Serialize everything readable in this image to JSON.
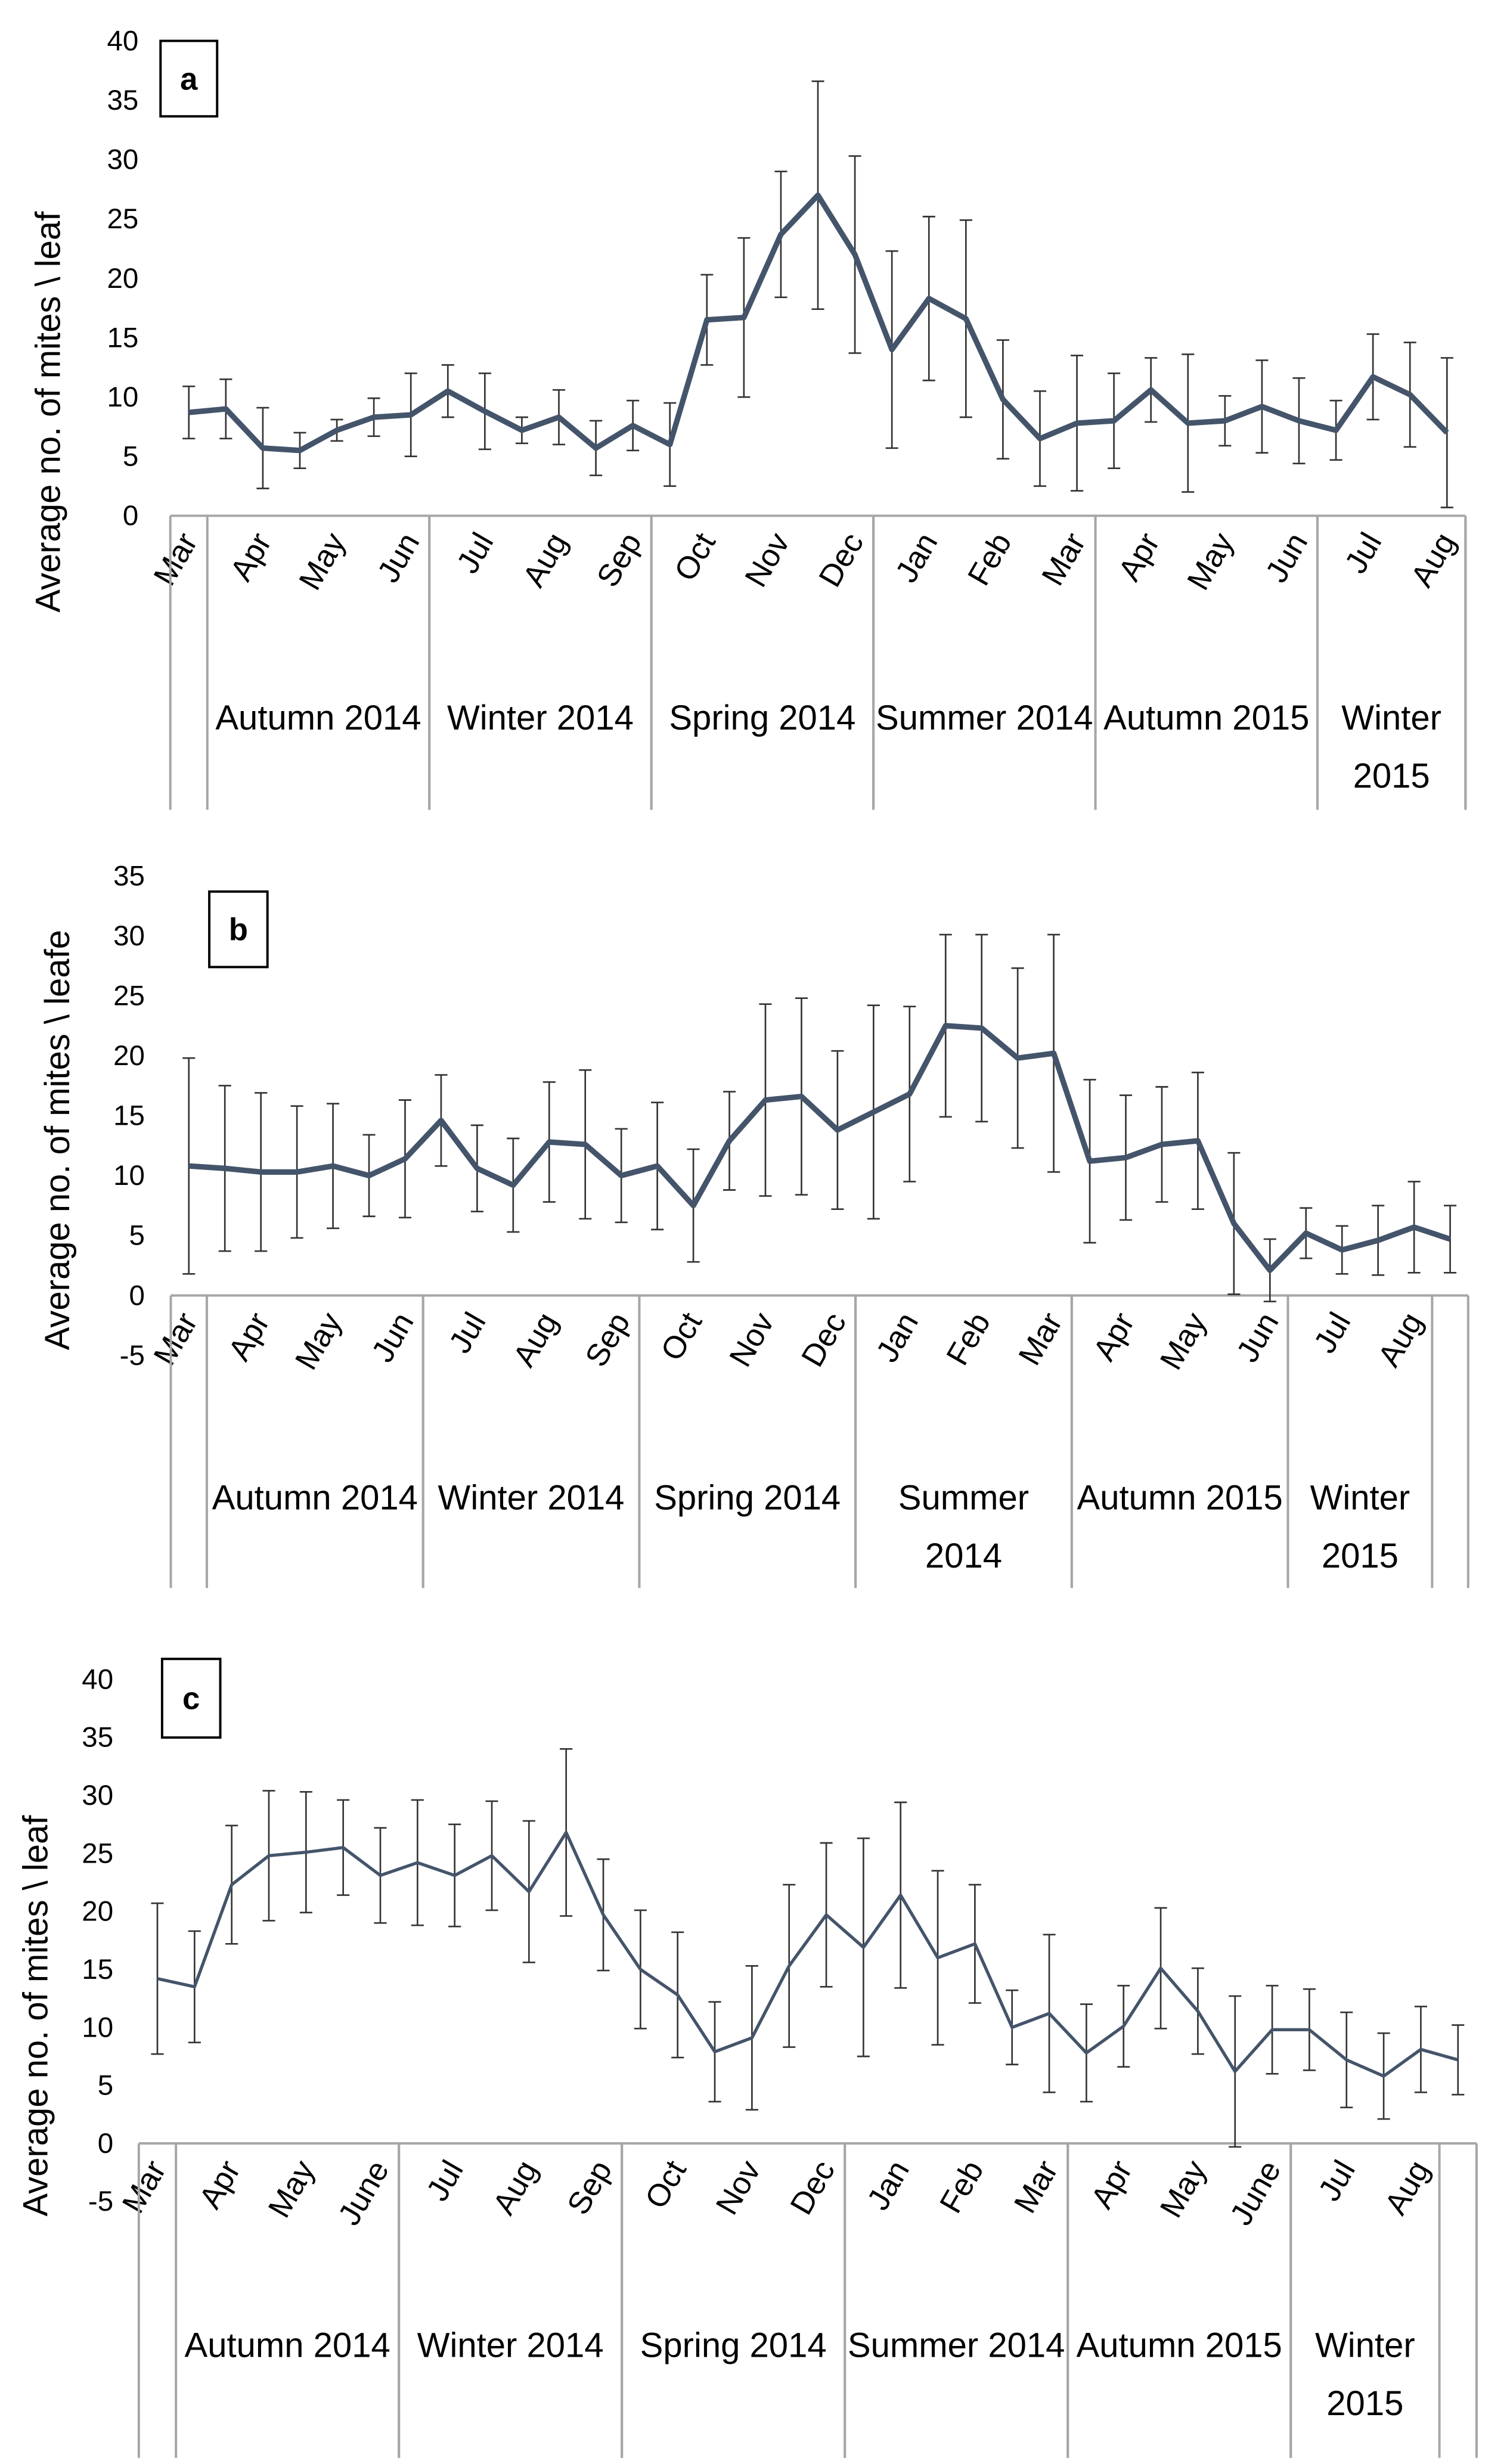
{
  "chart_data": [
    {
      "type": "line",
      "panel": "a",
      "y_label": "Average no. of mites \\ leaf",
      "categories": [
        "Mar",
        null,
        "Apr",
        null,
        "May",
        null,
        "Jun",
        null,
        "Jul",
        null,
        "Aug",
        null,
        "Sep",
        null,
        "Oct",
        null,
        "Nov",
        null,
        "Dec",
        null,
        "Jan",
        null,
        "Feb",
        null,
        "Mar",
        null,
        "Apr",
        null,
        "May",
        null,
        "Jun",
        null,
        "Jul",
        null,
        "Aug"
      ],
      "groups": [
        "Autumn 2014",
        "Winter 2014",
        "Spring 2014",
        "Summer 2014",
        "Autumn 2015",
        "Winter 2015"
      ],
      "values": [
        8.7,
        9,
        5.7,
        5.5,
        7.2,
        8.3,
        8.5,
        10.5,
        8.8,
        7.2,
        8.3,
        5.7,
        7.6,
        6,
        16.5,
        16.7,
        23.7,
        27,
        22,
        14,
        18.3,
        16.6,
        9.8,
        6.5,
        7.8,
        8,
        10.6,
        7.8,
        8,
        9.2,
        8,
        7.2,
        11.7,
        10.2,
        7
      ],
      "errors": [
        2.2,
        2.5,
        3.4,
        1.5,
        0.9,
        1.6,
        3.5,
        2.2,
        3.2,
        1.1,
        2.3,
        2.3,
        2.1,
        3.5,
        3.8,
        6.7,
        5.3,
        9.6,
        8.3,
        8.3,
        6.9,
        8.3,
        5,
        4,
        5.7,
        4,
        2.7,
        5.8,
        2.1,
        3.9,
        3.6,
        2.5,
        3.6,
        4.4,
        6.3
      ],
      "ylim": [
        0,
        40
      ],
      "yticks": [
        0,
        5,
        10,
        15,
        20,
        25,
        30,
        35,
        40
      ],
      "color": "#44546a",
      "line_width": 3.5
    },
    {
      "type": "line",
      "panel": "b",
      "y_label": "Average no. of mites \\ leafe",
      "categories": [
        "Mar",
        null,
        "Apr",
        null,
        "May",
        null,
        "Jun",
        null,
        "Jul",
        null,
        "Aug",
        null,
        "Sep",
        null,
        "Oct",
        null,
        "Nov",
        null,
        "Dec",
        null,
        "Jan",
        null,
        "Feb",
        null,
        "Mar",
        null,
        "Apr",
        null,
        "May",
        null,
        "Jun",
        null,
        "Jul",
        null,
        "Aug",
        null
      ],
      "groups": [
        "Autumn 2014",
        "Winter 2014",
        "Spring 2014",
        "Summer 2014",
        "Autumn 2015",
        "Winter 2015"
      ],
      "values": [
        10.8,
        10.6,
        10.3,
        10.3,
        10.8,
        10,
        11.4,
        14.6,
        10.6,
        9.2,
        12.8,
        12.6,
        10,
        10.8,
        7.5,
        12.9,
        16.3,
        16.6,
        13.8,
        15.3,
        16.8,
        22.5,
        22.3,
        19.8,
        20.2,
        11.2,
        11.5,
        12.6,
        12.9,
        6,
        2.1,
        5.2,
        3.8,
        4.6,
        5.7,
        4.7
      ],
      "errors": [
        9,
        6.9,
        6.6,
        5.5,
        5.2,
        3.4,
        4.9,
        3.8,
        3.6,
        3.9,
        5,
        6.2,
        3.9,
        5.3,
        4.7,
        4.1,
        8,
        8.2,
        6.6,
        8.9,
        7.3,
        7.6,
        7.8,
        7.5,
        9.9,
        6.8,
        5.2,
        4.8,
        5.7,
        5.9,
        2.6,
        2.1,
        2,
        2.9,
        3.8,
        2.8
      ],
      "ylim": [
        -5,
        35
      ],
      "yticks": [
        -5,
        0,
        5,
        10,
        15,
        20,
        25,
        30,
        35
      ],
      "color": "#44546a",
      "line_width": 3.5
    },
    {
      "type": "line",
      "panel": "c",
      "y_label": "Average no. of mites \\ leaf",
      "categories": [
        "Mar",
        null,
        "Apr",
        null,
        "May",
        null,
        "June",
        null,
        "Jul",
        null,
        "Aug",
        null,
        "Sep",
        null,
        "Oct",
        null,
        "Nov",
        null,
        "Dec",
        null,
        "Jan",
        null,
        "Feb",
        null,
        "Mar",
        null,
        "Apr",
        null,
        "May",
        null,
        "June",
        null,
        "Jul",
        null,
        "Aug",
        null
      ],
      "groups": [
        "Autumn 2014",
        "Winter 2014",
        "Spring 2014",
        "Summer 2014",
        "Autumn 2015",
        "Winter 2015"
      ],
      "values": [
        14.2,
        13.5,
        22.3,
        24.8,
        25.1,
        25.5,
        23.1,
        24.2,
        23.1,
        24.8,
        21.7,
        26.8,
        19.7,
        15,
        12.8,
        7.9,
        9.1,
        15.3,
        19.7,
        16.9,
        21.4,
        16,
        17.2,
        10,
        11.2,
        7.8,
        10.1,
        15.1,
        11.4,
        6.2,
        9.8,
        9.8,
        7.2,
        5.8,
        8.1,
        7.2
      ],
      "errors": [
        6.5,
        4.8,
        5.1,
        5.6,
        5.2,
        4.1,
        4.1,
        5.4,
        4.4,
        4.7,
        6.1,
        7.2,
        4.8,
        5.1,
        5.4,
        4.3,
        6.2,
        7,
        6.2,
        9.4,
        8,
        7.5,
        5.1,
        3.2,
        6.8,
        4.2,
        3.5,
        5.2,
        3.7,
        6.5,
        3.8,
        3.5,
        4.1,
        3.7,
        3.7,
        3
      ],
      "ylim": [
        -5,
        40
      ],
      "yticks": [
        -5,
        0,
        5,
        10,
        15,
        20,
        25,
        30,
        35,
        40
      ],
      "color": "#44546a",
      "line_width": 2
    }
  ]
}
